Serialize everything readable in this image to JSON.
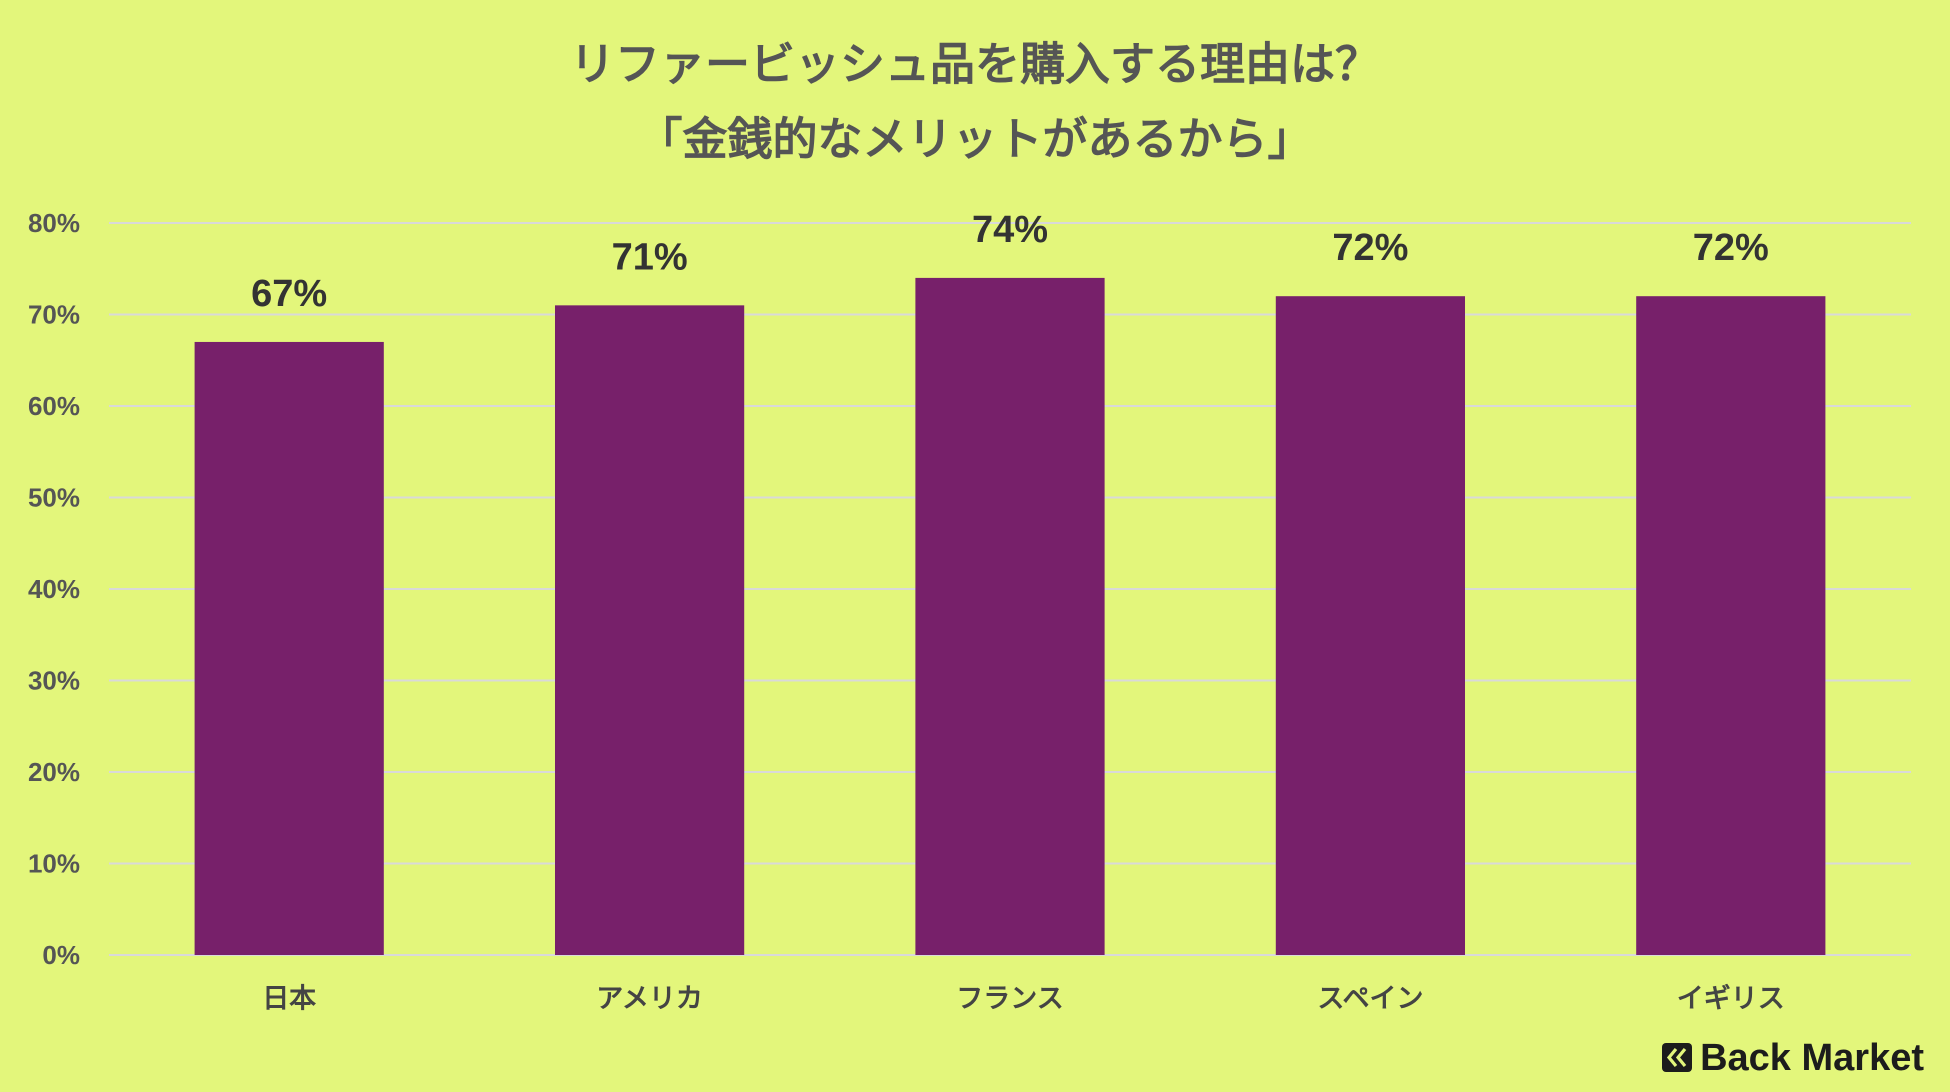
{
  "page": {
    "background": "#E3F67B"
  },
  "chart_data": {
    "type": "bar",
    "title": "リファービッシュ品を購入する理由は？",
    "subtitle": "「金銭的なメリットがあるから」",
    "xlabel": "",
    "ylabel": "",
    "categories": [
      "日本",
      "アメリカ",
      "フランス",
      "スペイン",
      "イギリス"
    ],
    "values": [
      67,
      71,
      74,
      72,
      72
    ],
    "data_labels": [
      "67%",
      "71%",
      "74%",
      "72%",
      "72%"
    ],
    "ylim": [
      0,
      80
    ],
    "yticks": [
      0,
      10,
      20,
      30,
      40,
      50,
      60,
      70,
      80
    ],
    "ytick_labels": [
      "0%",
      "10%",
      "20%",
      "30%",
      "40%",
      "50%",
      "60%",
      "70%",
      "80%"
    ],
    "grid": true,
    "colors": {
      "bar": "#77206A",
      "grid": "#D9D9D9",
      "text": "#555555"
    }
  },
  "brand": {
    "name": "Back Market",
    "icon": "back-market-logo-icon"
  }
}
